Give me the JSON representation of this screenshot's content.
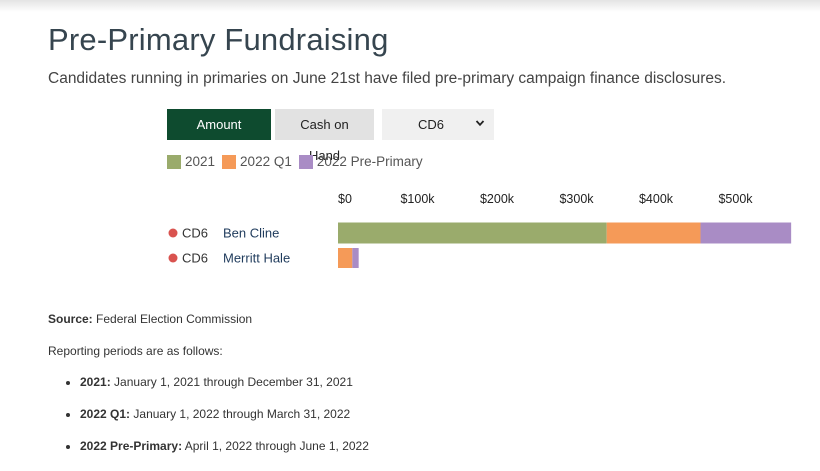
{
  "page": {
    "title": "Pre-Primary Fundraising",
    "subtitle": "Candidates running in primaries on June 21st have filed pre-primary campaign finance disclosures."
  },
  "controls": {
    "amount_raised_label": "Amount Raised",
    "cash_on_hand_label": "Cash on Hand",
    "district_select_value": "CD6"
  },
  "legend": [
    {
      "label": "2021",
      "color": "#9aab6c"
    },
    {
      "label": "2022 Q1",
      "color": "#f59a58"
    },
    {
      "label": "2022 Pre-Primary",
      "color": "#a98cc5"
    }
  ],
  "chart_data": {
    "type": "bar",
    "orientation": "horizontal",
    "stacked": true,
    "x_tick_labels": [
      "$0",
      "$100k",
      "$200k",
      "$300k",
      "$400k",
      "$500k"
    ],
    "x_ticks": [
      0,
      100000,
      200000,
      300000,
      400000,
      500000
    ],
    "xlim": [
      0,
      570000
    ],
    "categories": [
      {
        "district": "CD6",
        "candidate": "Ben Cline",
        "dot_color": "#d9534f"
      },
      {
        "district": "CD6",
        "candidate": "Merritt Hale",
        "dot_color": "#d9534f"
      }
    ],
    "series": [
      {
        "name": "2021",
        "color": "#9aab6c",
        "values": [
          338000,
          0
        ]
      },
      {
        "name": "2022 Q1",
        "color": "#f59a58",
        "values": [
          118000,
          18000
        ]
      },
      {
        "name": "2022 Pre-Primary",
        "color": "#a98cc5",
        "values": [
          114000,
          8000
        ]
      }
    ]
  },
  "footer": {
    "source_label": "Source:",
    "source_text": "Federal Election Commission",
    "periods_intro": "Reporting periods are as follows:",
    "periods": [
      {
        "label": "2021:",
        "text": "January 1, 2021 through December 31, 2021"
      },
      {
        "label": "2022 Q1:",
        "text": "January 1, 2022 through March 31, 2022"
      },
      {
        "label": "2022 Pre-Primary:",
        "text": "April 1, 2022 through June 1, 2022"
      }
    ]
  }
}
